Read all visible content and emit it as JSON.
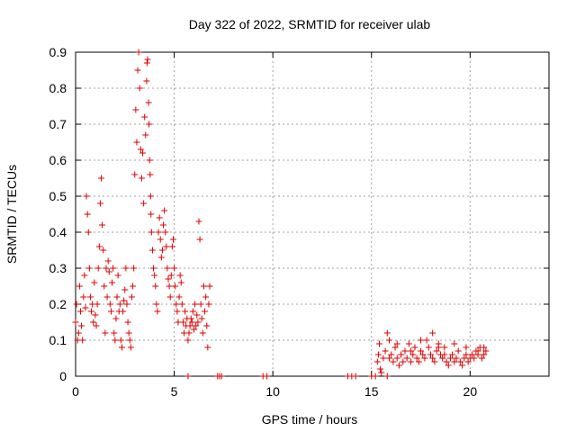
{
  "chart_data": {
    "type": "scatter",
    "title": "Day 322 of 2022, SRMTID for receiver ulab",
    "xlabel": "GPS time / hours",
    "ylabel": "SRMTID / TECUs",
    "xlim": [
      0,
      24
    ],
    "ylim": [
      0,
      0.9
    ],
    "x_ticks": [
      0,
      5,
      10,
      15,
      20
    ],
    "y_ticks": [
      0,
      0.1,
      0.2,
      0.3,
      0.4,
      0.5,
      0.6,
      0.7,
      0.8,
      0.9
    ],
    "grid": true,
    "marker": "plus",
    "color": "#e00000",
    "series": [
      {
        "name": "SRMTID",
        "x": [
          0.0,
          0.05,
          0.1,
          0.15,
          0.2,
          0.25,
          0.3,
          0.35,
          0.4,
          0.45,
          0.5,
          0.55,
          0.6,
          0.65,
          0.7,
          0.75,
          0.8,
          0.85,
          0.9,
          0.95,
          1.0,
          1.05,
          1.1,
          1.15,
          1.2,
          1.25,
          1.3,
          1.35,
          1.4,
          1.45,
          1.5,
          1.55,
          1.6,
          1.65,
          1.7,
          1.75,
          1.8,
          1.85,
          1.9,
          1.95,
          2.0,
          2.05,
          2.1,
          2.15,
          2.2,
          2.25,
          2.3,
          2.35,
          2.4,
          2.45,
          2.5,
          2.55,
          2.6,
          2.65,
          2.7,
          2.75,
          2.8,
          2.85,
          2.9,
          2.95,
          3.0,
          3.05,
          3.1,
          3.15,
          3.2,
          3.25,
          3.3,
          3.35,
          3.4,
          3.45,
          3.5,
          3.55,
          3.6,
          3.62,
          3.65,
          3.7,
          3.72,
          3.75,
          3.78,
          3.8,
          3.82,
          3.85,
          3.9,
          3.95,
          4.0,
          4.05,
          4.1,
          4.15,
          4.2,
          4.25,
          4.3,
          4.35,
          4.4,
          4.45,
          4.5,
          4.55,
          4.6,
          4.65,
          4.7,
          4.75,
          4.8,
          4.85,
          4.9,
          4.95,
          5.0,
          5.05,
          5.1,
          5.15,
          5.2,
          5.25,
          5.3,
          5.35,
          5.4,
          5.45,
          5.5,
          5.55,
          5.6,
          5.65,
          5.7,
          5.75,
          5.8,
          5.85,
          5.9,
          5.95,
          6.0,
          6.05,
          6.1,
          6.15,
          6.2,
          6.25,
          6.3,
          6.35,
          6.4,
          6.45,
          6.5,
          6.55,
          6.6,
          6.65,
          6.7,
          6.75,
          6.8,
          5.7,
          7.2,
          7.3,
          7.4,
          9.5,
          9.7,
          13.8,
          14.0,
          14.2,
          15.0,
          15.2,
          15.8,
          15.3,
          15.35,
          15.4,
          15.45,
          15.5,
          15.6,
          15.7,
          15.8,
          15.9,
          16.0,
          16.1,
          16.2,
          16.3,
          16.4,
          16.5,
          16.6,
          16.7,
          16.8,
          16.9,
          17.0,
          17.1,
          17.2,
          17.3,
          17.4,
          17.5,
          17.6,
          17.7,
          17.8,
          17.9,
          18.0,
          18.1,
          18.2,
          18.3,
          18.4,
          18.5,
          18.6,
          18.7,
          18.8,
          18.9,
          19.0,
          19.1,
          19.2,
          19.3,
          19.4,
          19.5,
          19.6,
          19.7,
          19.8,
          19.9,
          20.0,
          20.1,
          20.2,
          20.3,
          20.4,
          20.5,
          20.6,
          20.7,
          20.8,
          15.9,
          16.3,
          17.0,
          17.5,
          18.1,
          18.4,
          18.7,
          19.2,
          19.8,
          20.4,
          20.7
        ],
        "y": [
          0.15,
          0.2,
          0.1,
          0.12,
          0.25,
          0.18,
          0.14,
          0.1,
          0.22,
          0.28,
          0.19,
          0.5,
          0.45,
          0.4,
          0.3,
          0.22,
          0.18,
          0.2,
          0.15,
          0.26,
          0.17,
          0.14,
          0.2,
          0.3,
          0.36,
          0.48,
          0.55,
          0.42,
          0.35,
          0.25,
          0.12,
          0.3,
          0.22,
          0.32,
          0.29,
          0.2,
          0.18,
          0.26,
          0.3,
          0.12,
          0.1,
          0.16,
          0.22,
          0.28,
          0.18,
          0.2,
          0.1,
          0.08,
          0.18,
          0.21,
          0.24,
          0.3,
          0.2,
          0.15,
          0.12,
          0.1,
          0.08,
          0.22,
          0.25,
          0.3,
          0.56,
          0.74,
          0.65,
          0.85,
          0.9,
          0.8,
          0.63,
          0.55,
          0.62,
          0.48,
          0.72,
          0.67,
          0.82,
          0.87,
          0.88,
          0.76,
          0.7,
          0.6,
          0.56,
          0.5,
          0.45,
          0.4,
          0.35,
          0.3,
          0.28,
          0.25,
          0.2,
          0.18,
          0.4,
          0.44,
          0.38,
          0.33,
          0.35,
          0.42,
          0.46,
          0.4,
          0.36,
          0.3,
          0.27,
          0.25,
          0.22,
          0.28,
          0.36,
          0.38,
          0.3,
          0.25,
          0.2,
          0.18,
          0.15,
          0.22,
          0.28,
          0.26,
          0.2,
          0.15,
          0.12,
          0.18,
          0.14,
          0.16,
          0.1,
          0.12,
          0.14,
          0.16,
          0.15,
          0.18,
          0.13,
          0.2,
          0.14,
          0.17,
          0.15,
          0.43,
          0.38,
          0.2,
          0.16,
          0.12,
          0.25,
          0.18,
          0.22,
          0.14,
          0.08,
          0.2,
          0.25,
          0.0,
          0.0,
          0.0,
          0.0,
          0.0,
          0.0,
          0.0,
          0.0,
          0.0,
          0.0,
          0.0,
          0.0,
          0.04,
          0.06,
          0.09,
          0.02,
          0.01,
          0.05,
          0.07,
          0.12,
          0.05,
          0.06,
          0.04,
          0.08,
          0.05,
          0.03,
          0.06,
          0.04,
          0.07,
          0.05,
          0.09,
          0.04,
          0.06,
          0.08,
          0.05,
          0.04,
          0.07,
          0.06,
          0.05,
          0.1,
          0.08,
          0.06,
          0.05,
          0.04,
          0.07,
          0.09,
          0.06,
          0.05,
          0.08,
          0.04,
          0.03,
          0.05,
          0.06,
          0.04,
          0.05,
          0.07,
          0.04,
          0.03,
          0.05,
          0.06,
          0.04,
          0.05,
          0.06,
          0.05,
          0.07,
          0.06,
          0.08,
          0.05,
          0.06,
          0.07,
          0.1,
          0.09,
          0.07,
          0.1,
          0.12,
          0.08,
          0.06,
          0.09,
          0.08,
          0.07,
          0.08
        ]
      }
    ]
  }
}
